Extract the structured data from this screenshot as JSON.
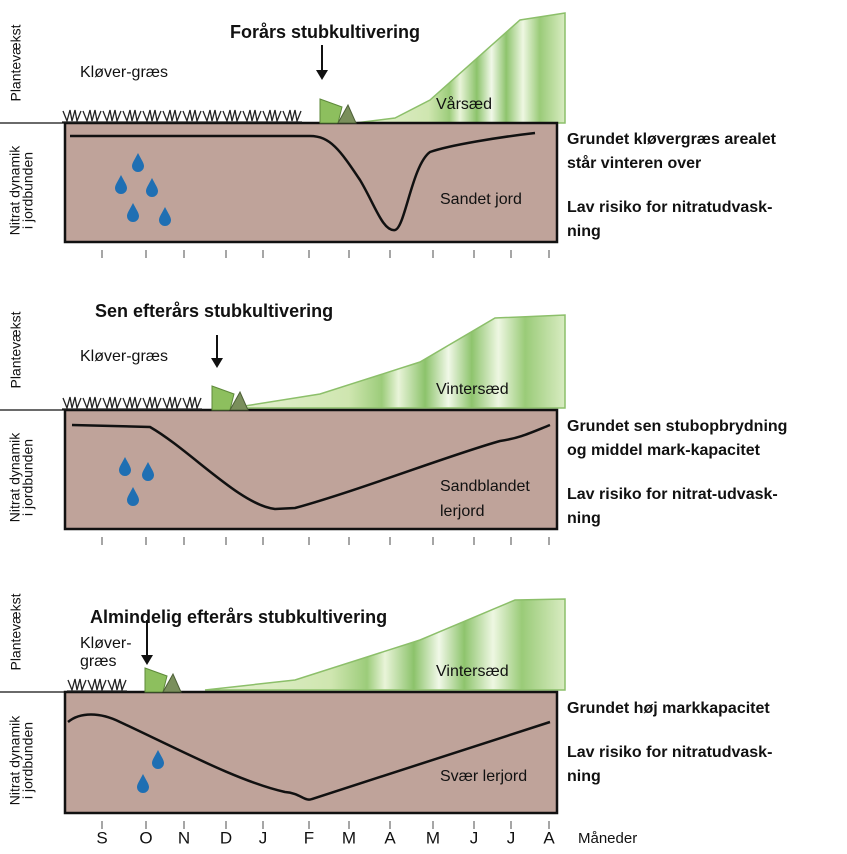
{
  "panels": [
    {
      "title": "Forårs stubkultivering",
      "y_label_top": "Plantevækst",
      "y_label_bottom": [
        "Nitrat dynamik",
        "i jordbunden"
      ],
      "crop_before": [
        "Kløver-græs"
      ],
      "crop_after": "Vårsæd",
      "soil": [
        "Sandet jord"
      ],
      "notes": [
        [
          "Grundet kløvergræs arealet",
          "står vinteren over"
        ],
        [
          "Lav risiko for nitratudvask-",
          "ning"
        ]
      ]
    },
    {
      "title": "Sen efterårs stubkultivering",
      "y_label_top": "Plantevækst",
      "y_label_bottom": [
        "Nitrat dynamik",
        "i jordbunden"
      ],
      "crop_before": [
        "Kløver-græs"
      ],
      "crop_after": "Vintersæd",
      "soil": [
        "Sandblandet",
        "lerjord"
      ],
      "notes": [
        [
          "Grundet sen stubopbrydning",
          "og middel mark-kapacitet"
        ],
        [
          "Lav risiko for nitrat-udvask-",
          "ning"
        ]
      ]
    },
    {
      "title": "Almindelig efterårs stubkultivering",
      "y_label_top": "Plantevækst",
      "y_label_bottom": [
        "Nitrat dynamik",
        "i jordbunden"
      ],
      "crop_before": [
        "Kløver-",
        "græs"
      ],
      "crop_after": "Vintersæd",
      "soil": [
        "Svær lerjord"
      ],
      "notes": [
        [
          "Grundet høj markkapacitet"
        ],
        [
          "Lav risiko for nitratudvask-",
          "ning"
        ]
      ]
    }
  ],
  "months": [
    "S",
    "O",
    "N",
    "D",
    "J",
    "F",
    "M",
    "A",
    "M",
    "J",
    "J",
    "A"
  ],
  "months_label": "Måneder"
}
